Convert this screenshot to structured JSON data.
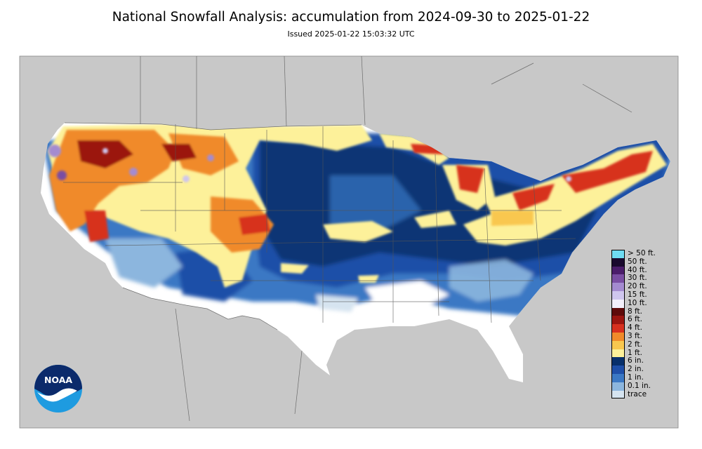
{
  "title": "National Snowfall Analysis: accumulation from 2024-09-30 to 2025-01-22",
  "subtitle": "Issued 2025-01-22 15:03:32 UTC",
  "logo": {
    "text": "NOAA",
    "icon": "noaa-logo-icon"
  },
  "colors": {
    "land_background": "#c8c8c8",
    "boundary_lines": "#555555",
    "ocean_frame": "#ffffff"
  },
  "legend": [
    {
      "label": "> 50 ft.",
      "color": "#6fdcf2"
    },
    {
      "label": "50 ft.",
      "color": "#1a0a2e"
    },
    {
      "label": "40 ft.",
      "color": "#4b1d6b"
    },
    {
      "label": "30 ft.",
      "color": "#7a4ea3"
    },
    {
      "label": "20 ft.",
      "color": "#a48bd0"
    },
    {
      "label": "15 ft.",
      "color": "#cfc6ee"
    },
    {
      "label": "10 ft.",
      "color": "#f3f0fb"
    },
    {
      "label": "8 ft.",
      "color": "#5e0a0a"
    },
    {
      "label": "6 ft.",
      "color": "#9b1510"
    },
    {
      "label": "4 ft.",
      "color": "#d7301f"
    },
    {
      "label": "3 ft.",
      "color": "#f08a2a"
    },
    {
      "label": "2 ft.",
      "color": "#f9c74f"
    },
    {
      "label": "1 ft.",
      "color": "#fdf19a"
    },
    {
      "label": "6 in.",
      "color": "#08306b"
    },
    {
      "label": "2 in.",
      "color": "#1f4fa8"
    },
    {
      "label": "1 in.",
      "color": "#3b78c4"
    },
    {
      "label": "0.1 in.",
      "color": "#8cb6de"
    },
    {
      "label": "trace",
      "color": "#d6e4f0"
    }
  ]
}
